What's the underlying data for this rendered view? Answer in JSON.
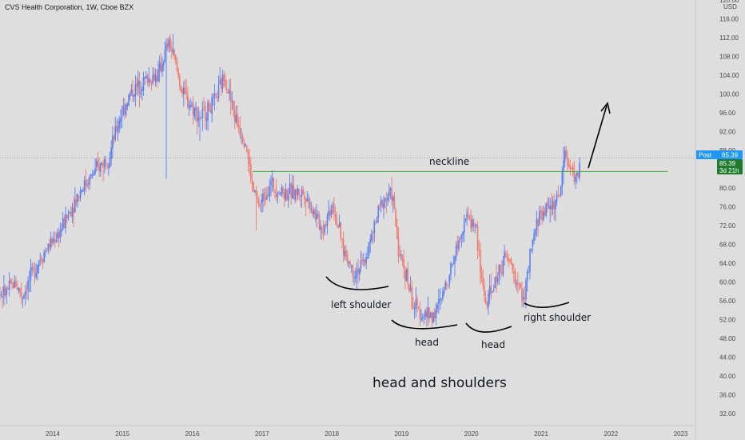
{
  "header": {
    "title": "CVS Health Corporation, 1W, Cboe BZX"
  },
  "price_axis": {
    "currency": "USD"
  },
  "badges": {
    "post_label": "Post",
    "post_price": "85.39",
    "last_price": "85.39",
    "countdown": "3d 21h"
  },
  "annotations": {
    "neckline": "neckline",
    "left_shoulder": "left shoulder",
    "head1": "head",
    "head2": "head",
    "right_shoulder": "right shoulder",
    "pattern": "head and shoulders"
  },
  "colors": {
    "background": "#dedede",
    "up": "#5b7ff0",
    "down": "#f07a6e",
    "neckline": "#4caf50",
    "post_badge": "#2196f3",
    "price_badge": "#1f7a2e",
    "text": "#131722",
    "axis_text": "#4a4a4a"
  },
  "chart_data": {
    "type": "candlestick",
    "title": "CVS Health Corporation, 1W, Cboe BZX",
    "yunit": "USD",
    "ylim": [
      30,
      120
    ],
    "yticks": [
      32,
      36,
      40,
      44,
      48,
      52,
      56,
      60,
      64,
      68,
      72,
      76,
      80,
      84,
      88,
      92,
      96,
      100,
      104,
      108,
      112,
      116,
      120
    ],
    "xlim": [
      2013.0,
      2023.3
    ],
    "xticks": [
      "2014",
      "2015",
      "2016",
      "2017",
      "2018",
      "2019",
      "2020",
      "2021",
      "2022",
      "2023"
    ],
    "grid": false,
    "last_price": 85.39,
    "neckline": {
      "x_start": 2016.85,
      "x_end": 2022.8,
      "price": 83.5
    },
    "price_path": [
      [
        2013.0,
        58.0
      ],
      [
        2013.3,
        57.5
      ],
      [
        2013.45,
        60.0
      ],
      [
        2013.55,
        57.0
      ],
      [
        2013.8,
        65.0
      ],
      [
        2014.1,
        71.0
      ],
      [
        2014.4,
        80.0
      ],
      [
        2014.8,
        87.0
      ],
      [
        2014.95,
        95.0
      ],
      [
        2015.1,
        100.0
      ],
      [
        2015.3,
        103.0
      ],
      [
        2015.5,
        104.0
      ],
      [
        2015.65,
        111.0
      ],
      [
        2015.72,
        108.0
      ],
      [
        2015.85,
        100.0
      ],
      [
        2015.95,
        98.0
      ],
      [
        2016.1,
        95.0
      ],
      [
        2016.3,
        98.0
      ],
      [
        2016.45,
        104.0
      ],
      [
        2016.6,
        95.0
      ],
      [
        2016.75,
        90.0
      ],
      [
        2016.85,
        80.0
      ],
      [
        2016.95,
        76.0
      ],
      [
        2017.1,
        81.0
      ],
      [
        2017.3,
        79.0
      ],
      [
        2017.6,
        79.0
      ],
      [
        2017.85,
        71.0
      ],
      [
        2018.0,
        77.0
      ],
      [
        2018.15,
        67.0
      ],
      [
        2018.3,
        62.0
      ],
      [
        2018.45,
        64.0
      ],
      [
        2018.7,
        77.0
      ],
      [
        2018.85,
        79.0
      ],
      [
        2018.95,
        66.0
      ],
      [
        2019.05,
        62.0
      ],
      [
        2019.15,
        55.0
      ],
      [
        2019.3,
        53.0
      ],
      [
        2019.45,
        53.0
      ],
      [
        2019.55,
        56.0
      ],
      [
        2019.75,
        66.0
      ],
      [
        2019.9,
        74.0
      ],
      [
        2020.05,
        72.0
      ],
      [
        2020.12,
        62.0
      ],
      [
        2020.2,
        55.0
      ],
      [
        2020.3,
        59.0
      ],
      [
        2020.45,
        65.0
      ],
      [
        2020.55,
        64.0
      ],
      [
        2020.65,
        59.0
      ],
      [
        2020.75,
        57.0
      ],
      [
        2020.85,
        67.0
      ],
      [
        2020.95,
        74.0
      ],
      [
        2021.1,
        76.0
      ],
      [
        2021.25,
        78.0
      ],
      [
        2021.32,
        88.0
      ],
      [
        2021.4,
        84.0
      ],
      [
        2021.5,
        82.0
      ],
      [
        2021.55,
        85.39
      ]
    ],
    "spikes": [
      {
        "x": 2015.62,
        "low": 82.0
      },
      {
        "x": 2016.1,
        "low": 90.0
      },
      {
        "x": 2016.9,
        "low": 71.0
      }
    ]
  }
}
